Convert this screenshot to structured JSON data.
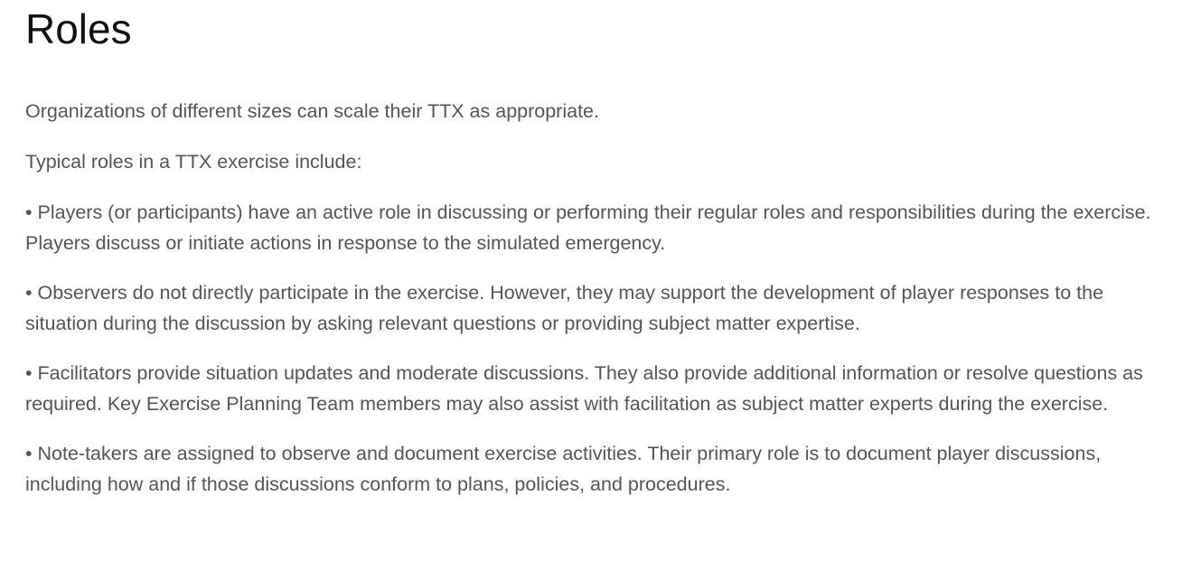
{
  "heading": "Roles",
  "intro": "Organizations of different sizes can scale their TTX as appropriate.",
  "lead": "Typical roles in a TTX exercise include:",
  "roles": [
    "• Players (or participants) have an active role in discussing or performing their regular roles and responsibilities during the exercise. Players discuss or initiate actions in response to the simulated emergency.",
    "• Observers do not directly participate in the exercise. However, they may support the development of player responses to the situation during the discussion by asking relevant questions or providing subject matter expertise.",
    "• Facilitators provide situation updates and moderate discussions. They also provide additional information or resolve questions as required. Key Exercise Planning Team members may also assist with facilitation as subject matter experts during the exercise.",
    "• Note-takers are assigned to observe and document exercise activities. Their primary role is to document player discussions, including how and if those discussions conform to plans, policies, and procedures."
  ],
  "colors": {
    "heading": "#111111",
    "body_text": "#555555",
    "background": "#ffffff"
  }
}
